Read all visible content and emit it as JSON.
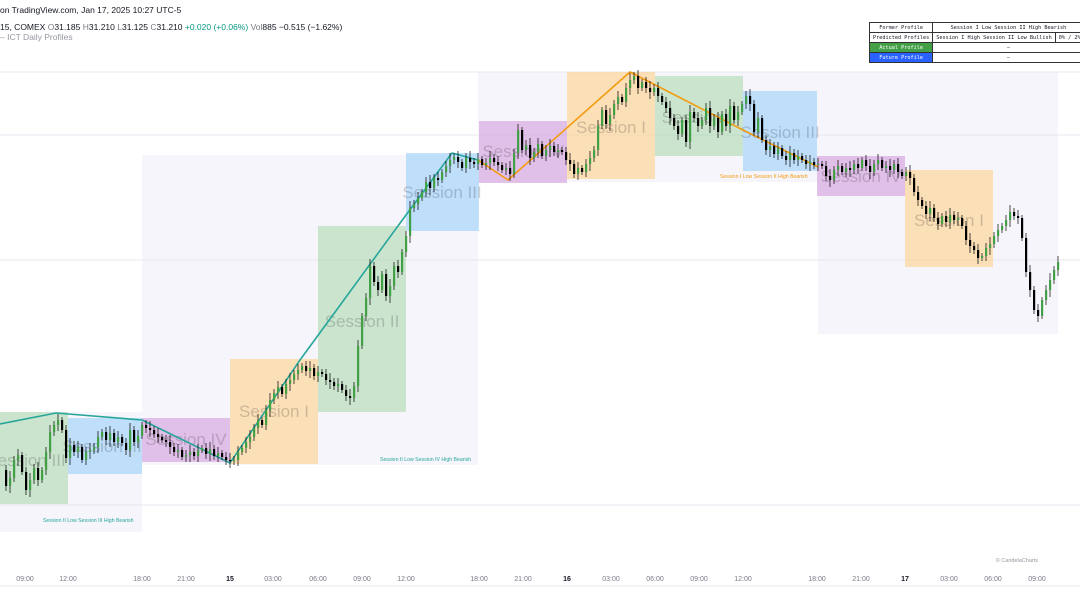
{
  "header": {
    "line1": "on TradingView.com, Jan 17, 2025 10:27 UTC-5",
    "symbol": "15, COMEX",
    "o_label": "O",
    "o": "31.185",
    "h_label": "H",
    "h": "31.210",
    "l_label": "L",
    "l": "31.125",
    "c_label": "C",
    "c": "31.210",
    "change": "+0.020 (+0.06%)",
    "vol_label": "Vol",
    "vol": "885",
    "change2": "−0.515 (−1.62%)",
    "indicator": "– ICT Daily Profiles"
  },
  "profile_table": {
    "former_label": "Former Profile",
    "former_value": "Session I Low Session II High Bearish",
    "predicted_label": "Predicted Profiles",
    "predicted_value": "Session I High Session II Low Bullish",
    "predicted_pct": "0% / 2%",
    "actual_label": "Actual Profile",
    "actual_value": "–",
    "future_label": "Future Profile",
    "future_value": "–"
  },
  "watermark": "© CandelaCharts",
  "chart_data": {
    "type": "candlestick",
    "xlabels": [
      "09:00",
      "12:00",
      "18:00",
      "21:00",
      "15",
      "03:00",
      "06:00",
      "09:00",
      "12:00",
      "18:00",
      "21:00",
      "16",
      "03:00",
      "06:00",
      "09:00",
      "12:00",
      "18:00",
      "21:00",
      "17",
      "03:00",
      "06:00",
      "09:00"
    ],
    "colors": {
      "session1": "#ffcc80",
      "session2": "#a5d6a7",
      "session3": "#90caf9",
      "session4": "#ce93d8",
      "teal": "#26a69a",
      "orange": "#f39c12",
      "upBody": "#43a047",
      "downBody": "#000000"
    },
    "sessions": [
      {
        "name": "Session III",
        "kind": "session2"
      },
      {
        "name": "Session III",
        "kind": "session3"
      },
      {
        "name": "Session IV",
        "kind": "session4"
      },
      {
        "name": "Session I",
        "kind": "session1"
      },
      {
        "name": "Session II",
        "kind": "session2"
      },
      {
        "name": "Session III",
        "kind": "session3"
      },
      {
        "name": "Session IV",
        "kind": "session4"
      },
      {
        "name": "Session I",
        "kind": "session1"
      },
      {
        "name": "Session II",
        "kind": "session2"
      },
      {
        "name": "Session III",
        "kind": "session3"
      },
      {
        "name": "Session IV",
        "kind": "session4"
      },
      {
        "name": "Session I",
        "kind": "session1"
      }
    ],
    "annotations": [
      {
        "text": "Session II Low Session III High Bearish",
        "color": "teal"
      },
      {
        "text": "Session II Low Session IV High Bearish",
        "color": "teal"
      },
      {
        "text": "Session I Low Session II High Bearish",
        "color": "orange"
      }
    ],
    "close_path": [
      [
        0,
        470
      ],
      [
        4,
        486
      ],
      [
        8,
        478
      ],
      [
        12,
        460
      ],
      [
        16,
        455
      ],
      [
        20,
        472
      ],
      [
        24,
        490
      ],
      [
        28,
        480
      ],
      [
        32,
        468
      ],
      [
        36,
        480
      ],
      [
        40,
        470
      ],
      [
        44,
        452
      ],
      [
        48,
        432
      ],
      [
        52,
        425
      ],
      [
        56,
        420
      ],
      [
        60,
        430
      ],
      [
        64,
        458
      ],
      [
        68,
        445
      ],
      [
        72,
        452
      ],
      [
        76,
        447
      ],
      [
        80,
        460
      ],
      [
        84,
        452
      ],
      [
        88,
        450
      ],
      [
        92,
        447
      ],
      [
        96,
        437
      ],
      [
        100,
        432
      ],
      [
        104,
        440
      ],
      [
        108,
        433
      ],
      [
        112,
        442
      ],
      [
        116,
        437
      ],
      [
        120,
        443
      ],
      [
        124,
        450
      ],
      [
        128,
        430
      ],
      [
        132,
        442
      ],
      [
        136,
        436
      ],
      [
        140,
        425
      ],
      [
        144,
        428
      ],
      [
        148,
        430
      ],
      [
        152,
        434
      ],
      [
        156,
        437
      ],
      [
        160,
        440
      ],
      [
        164,
        442
      ],
      [
        168,
        447
      ],
      [
        172,
        452
      ],
      [
        176,
        450
      ],
      [
        180,
        457
      ],
      [
        184,
        455
      ],
      [
        188,
        452
      ],
      [
        192,
        456
      ],
      [
        196,
        450
      ],
      [
        200,
        448
      ],
      [
        204,
        454
      ],
      [
        208,
        449
      ],
      [
        212,
        456
      ],
      [
        216,
        453
      ],
      [
        220,
        457
      ],
      [
        224,
        460
      ],
      [
        228,
        461
      ],
      [
        232,
        460
      ],
      [
        236,
        452
      ],
      [
        240,
        448
      ],
      [
        244,
        442
      ],
      [
        248,
        437
      ],
      [
        252,
        428
      ],
      [
        256,
        420
      ],
      [
        260,
        425
      ],
      [
        264,
        410
      ],
      [
        268,
        400
      ],
      [
        272,
        393
      ],
      [
        276,
        387
      ],
      [
        280,
        394
      ],
      [
        284,
        384
      ],
      [
        288,
        380
      ],
      [
        292,
        374
      ],
      [
        296,
        370
      ],
      [
        300,
        366
      ],
      [
        304,
        371
      ],
      [
        308,
        368
      ],
      [
        312,
        376
      ],
      [
        316,
        372
      ],
      [
        320,
        374
      ],
      [
        324,
        380
      ],
      [
        328,
        382
      ],
      [
        332,
        386
      ],
      [
        336,
        384
      ],
      [
        340,
        390
      ],
      [
        344,
        396
      ],
      [
        348,
        398
      ],
      [
        352,
        386
      ],
      [
        356,
        346
      ],
      [
        360,
        316
      ],
      [
        364,
        298
      ],
      [
        368,
        266
      ],
      [
        372,
        282
      ],
      [
        376,
        290
      ],
      [
        380,
        274
      ],
      [
        384,
        296
      ],
      [
        388,
        286
      ],
      [
        392,
        266
      ],
      [
        396,
        272
      ],
      [
        400,
        252
      ],
      [
        404,
        236
      ],
      [
        408,
        208
      ],
      [
        412,
        204
      ],
      [
        416,
        198
      ],
      [
        420,
        192
      ],
      [
        424,
        182
      ],
      [
        428,
        188
      ],
      [
        432,
        178
      ],
      [
        436,
        180
      ],
      [
        440,
        172
      ],
      [
        444,
        166
      ],
      [
        448,
        160
      ],
      [
        452,
        157
      ],
      [
        456,
        162
      ],
      [
        460,
        168
      ],
      [
        464,
        158
      ],
      [
        468,
        162
      ],
      [
        472,
        164
      ],
      [
        476,
        159
      ],
      [
        480,
        165
      ],
      [
        484,
        163
      ],
      [
        488,
        158
      ],
      [
        492,
        162
      ],
      [
        496,
        165
      ],
      [
        500,
        170
      ],
      [
        504,
        168
      ],
      [
        508,
        174
      ],
      [
        512,
        153
      ],
      [
        516,
        130
      ],
      [
        520,
        150
      ],
      [
        524,
        145
      ],
      [
        528,
        158
      ],
      [
        532,
        152
      ],
      [
        536,
        144
      ],
      [
        540,
        156
      ],
      [
        544,
        150
      ],
      [
        548,
        146
      ],
      [
        552,
        152
      ],
      [
        556,
        150
      ],
      [
        560,
        152
      ],
      [
        564,
        160
      ],
      [
        568,
        164
      ],
      [
        572,
        174
      ],
      [
        576,
        168
      ],
      [
        580,
        172
      ],
      [
        584,
        164
      ],
      [
        588,
        158
      ],
      [
        592,
        150
      ],
      [
        596,
        126
      ],
      [
        600,
        110
      ],
      [
        604,
        124
      ],
      [
        608,
        115
      ],
      [
        612,
        104
      ],
      [
        616,
        97
      ],
      [
        620,
        102
      ],
      [
        624,
        88
      ],
      [
        628,
        80
      ],
      [
        632,
        76
      ],
      [
        636,
        88
      ],
      [
        640,
        82
      ],
      [
        644,
        88
      ],
      [
        648,
        92
      ],
      [
        652,
        88
      ],
      [
        656,
        96
      ],
      [
        660,
        102
      ],
      [
        664,
        108
      ],
      [
        668,
        118
      ],
      [
        672,
        126
      ],
      [
        676,
        134
      ],
      [
        680,
        120
      ],
      [
        684,
        142
      ],
      [
        688,
        112
      ],
      [
        692,
        118
      ],
      [
        696,
        126
      ],
      [
        700,
        120
      ],
      [
        704,
        108
      ],
      [
        708,
        126
      ],
      [
        712,
        118
      ],
      [
        716,
        132
      ],
      [
        720,
        114
      ],
      [
        724,
        126
      ],
      [
        728,
        106
      ],
      [
        732,
        120
      ],
      [
        736,
        112
      ],
      [
        740,
        104
      ],
      [
        744,
        96
      ],
      [
        748,
        104
      ],
      [
        752,
        132
      ],
      [
        756,
        118
      ],
      [
        760,
        140
      ],
      [
        764,
        150
      ],
      [
        768,
        146
      ],
      [
        772,
        154
      ],
      [
        776,
        148
      ],
      [
        780,
        156
      ],
      [
        784,
        160
      ],
      [
        788,
        153
      ],
      [
        792,
        160
      ],
      [
        796,
        156
      ],
      [
        800,
        160
      ],
      [
        804,
        164
      ],
      [
        808,
        162
      ],
      [
        812,
        165
      ],
      [
        816,
        164
      ],
      [
        820,
        166
      ],
      [
        824,
        176
      ],
      [
        828,
        180
      ],
      [
        832,
        170
      ],
      [
        836,
        166
      ],
      [
        840,
        172
      ],
      [
        844,
        168
      ],
      [
        848,
        170
      ],
      [
        852,
        164
      ],
      [
        856,
        168
      ],
      [
        860,
        160
      ],
      [
        864,
        166
      ],
      [
        868,
        172
      ],
      [
        872,
        164
      ],
      [
        876,
        160
      ],
      [
        880,
        168
      ],
      [
        884,
        166
      ],
      [
        888,
        170
      ],
      [
        892,
        164
      ],
      [
        896,
        172
      ],
      [
        900,
        176
      ],
      [
        904,
        172
      ],
      [
        908,
        178
      ],
      [
        912,
        192
      ],
      [
        916,
        200
      ],
      [
        920,
        206
      ],
      [
        924,
        214
      ],
      [
        928,
        208
      ],
      [
        932,
        218
      ],
      [
        936,
        224
      ],
      [
        940,
        216
      ],
      [
        944,
        222
      ],
      [
        948,
        215
      ],
      [
        952,
        220
      ],
      [
        956,
        218
      ],
      [
        960,
        226
      ],
      [
        964,
        240
      ],
      [
        968,
        246
      ],
      [
        972,
        250
      ],
      [
        976,
        258
      ],
      [
        980,
        256
      ],
      [
        984,
        248
      ],
      [
        988,
        244
      ],
      [
        992,
        236
      ],
      [
        996,
        230
      ],
      [
        1000,
        226
      ],
      [
        1004,
        220
      ],
      [
        1008,
        212
      ],
      [
        1012,
        216
      ],
      [
        1016,
        218
      ],
      [
        1020,
        238
      ],
      [
        1024,
        272
      ],
      [
        1028,
        290
      ],
      [
        1032,
        310
      ],
      [
        1036,
        316
      ],
      [
        1040,
        300
      ],
      [
        1044,
        290
      ],
      [
        1048,
        280
      ],
      [
        1052,
        270
      ],
      [
        1056,
        262
      ]
    ]
  }
}
